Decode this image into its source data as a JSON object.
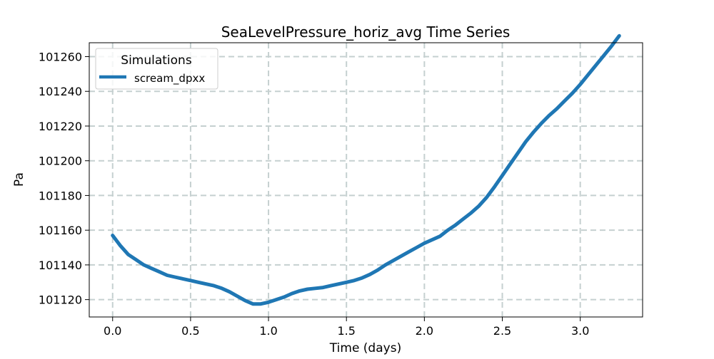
{
  "chart_data": {
    "type": "line",
    "title": "SeaLevelPressure_horiz_avg Time Series",
    "xlabel": "Time (days)",
    "ylabel": "Pa",
    "xlim": [
      -0.15,
      3.4
    ],
    "ylim": [
      101110,
      101268
    ],
    "xticks": [
      0.0,
      0.5,
      1.0,
      1.5,
      2.0,
      2.5,
      3.0
    ],
    "xtick_labels": [
      "0.0",
      "0.5",
      "1.0",
      "1.5",
      "2.0",
      "2.5",
      "3.0"
    ],
    "yticks": [
      101120,
      101140,
      101160,
      101180,
      101200,
      101220,
      101240,
      101260
    ],
    "ytick_labels": [
      "101120",
      "101140",
      "101160",
      "101180",
      "101200",
      "101220",
      "101240",
      "101260"
    ],
    "grid": true,
    "legend": {
      "title": "Simulations",
      "placement": "top-left"
    },
    "series": [
      {
        "name": "scream_dpxx",
        "color": "#1f77b4",
        "x": [
          0.0,
          0.05,
          0.1,
          0.15,
          0.2,
          0.25,
          0.3,
          0.35,
          0.4,
          0.45,
          0.5,
          0.55,
          0.6,
          0.65,
          0.7,
          0.75,
          0.8,
          0.85,
          0.9,
          0.95,
          1.0,
          1.05,
          1.1,
          1.15,
          1.2,
          1.25,
          1.3,
          1.35,
          1.4,
          1.45,
          1.5,
          1.55,
          1.6,
          1.65,
          1.7,
          1.75,
          1.8,
          1.85,
          1.9,
          1.95,
          2.0,
          2.05,
          2.1,
          2.15,
          2.2,
          2.25,
          2.3,
          2.35,
          2.4,
          2.45,
          2.5,
          2.55,
          2.6,
          2.65,
          2.7,
          2.75,
          2.8,
          2.85,
          2.9,
          2.95,
          3.0,
          3.05,
          3.1,
          3.15,
          3.2,
          3.25
        ],
        "y": [
          101157,
          101151,
          101146,
          101143,
          101140,
          101138,
          101136,
          101134,
          101133,
          101132,
          101131,
          101130,
          101129,
          101128,
          101126.5,
          101124.5,
          101122,
          101119.5,
          101117.5,
          101117.5,
          101118.5,
          101120,
          101121.5,
          101123.5,
          101125,
          101126,
          101126.5,
          101127,
          101128,
          101129,
          101130,
          101131,
          101132.5,
          101134.5,
          101137,
          101140,
          101142.5,
          101145,
          101147.5,
          101150,
          101152.5,
          101154.5,
          101156.5,
          101160,
          101163,
          101166.5,
          101170,
          101174,
          101179,
          101185,
          101191.5,
          101198,
          101204.5,
          101211,
          101216.5,
          101221.5,
          101226,
          101230,
          101234.5,
          101239,
          101244,
          101249.5,
          101255,
          101260.5,
          101266,
          101272
        ]
      }
    ]
  }
}
